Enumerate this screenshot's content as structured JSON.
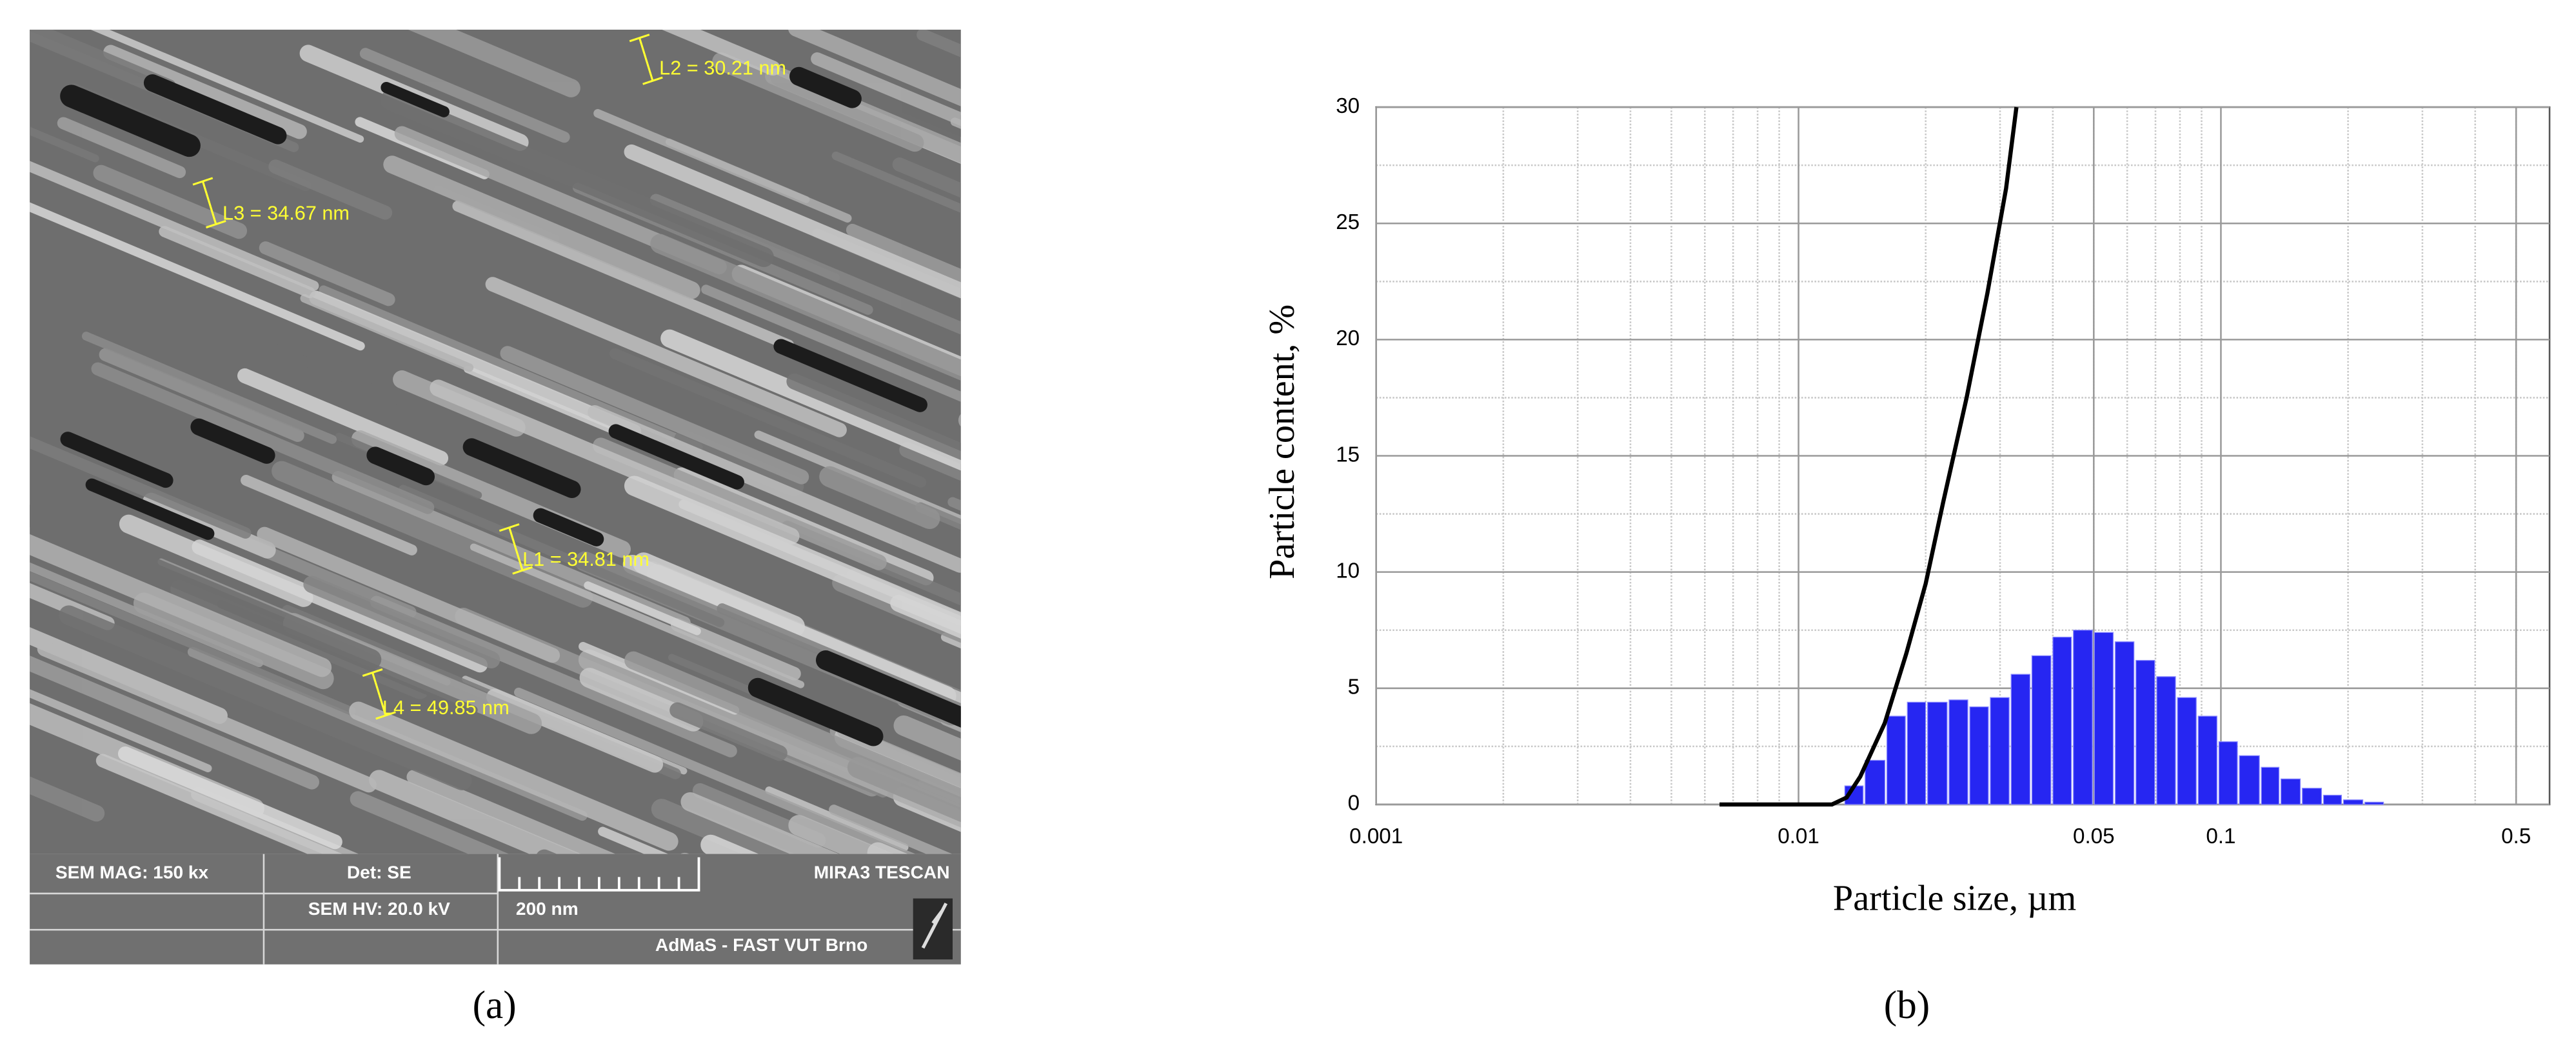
{
  "sem": {
    "measurements": [
      "L2 = 30.21 nm",
      "L3 = 34.67 nm",
      "L1 = 34.81 nm",
      "L4 = 49.85 nm"
    ],
    "info": {
      "mag": "SEM MAG: 150 kx",
      "det": "Det: SE",
      "brand": "MIRA3 TESCAN",
      "hv": "SEM HV: 20.0 kV",
      "scale": "200 nm",
      "lab": "AdMaS - FAST VUT Brno"
    }
  },
  "captions": [
    "(a)",
    "(b)"
  ],
  "chart_data": {
    "type": "histogram",
    "xlabel": "Particle size, µm",
    "ylabel": "Particle content, %",
    "bins": [
      0.0128,
      0.0143,
      0.0161,
      0.018,
      0.0201,
      0.0226,
      0.0253,
      0.0283,
      0.0317,
      0.0355,
      0.0398,
      0.0445,
      0.0499,
      0.0559,
      0.0626,
      0.0701,
      0.0785,
      0.0879,
      0.0984,
      0.11,
      0.124,
      0.138,
      0.155,
      0.174,
      0.194,
      0.218,
      0.244
    ],
    "values": [
      0.8,
      1.9,
      3.8,
      4.4,
      4.4,
      4.5,
      4.2,
      4.6,
      5.6,
      6.4,
      7.2,
      7.5,
      7.4,
      7.0,
      6.2,
      5.5,
      4.6,
      3.8,
      2.7,
      2.1,
      1.6,
      1.1,
      0.7,
      0.4,
      0.2,
      0.1
    ],
    "color": "#2626f2",
    "curve": {
      "x": [
        0.0065,
        0.012,
        0.013,
        0.014,
        0.016,
        0.018,
        0.02,
        0.022,
        0.025,
        0.028,
        0.031,
        0.0328
      ],
      "values": [
        0,
        0,
        0.3,
        1.2,
        3.5,
        6.5,
        9.5,
        13,
        17.5,
        22,
        26.5,
        30
      ],
      "color": "#000000"
    },
    "xscale": "log",
    "xlim": [
      0.001,
      0.6
    ],
    "xticks": [
      0.001,
      0.01,
      0.05,
      0.1,
      0.5
    ],
    "ylim": [
      0,
      30
    ],
    "yticks": [
      0,
      5,
      10,
      15,
      20,
      25,
      30
    ],
    "grid": true
  }
}
